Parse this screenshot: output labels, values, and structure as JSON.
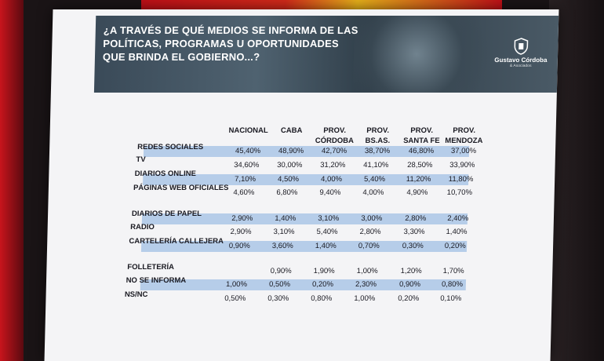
{
  "slide": {
    "title": "¿A TRAVÉS DE QUÉ MEDIOS SE INFORMA DE LAS POLÍTICAS, PROGRAMAS U OPORTUNIDADES QUE BRINDA EL GOBIERNO...?",
    "logo_name": "Gustavo Córdoba",
    "logo_sub": "& Asociados"
  },
  "table": {
    "columns": [
      "NACIONAL",
      "CABA",
      "PROV. CÓRDOBA",
      "PROV. BS.AS.",
      "PROV. SANTA FE",
      "PROV. MENDOZA"
    ],
    "rows": [
      {
        "label": "REDES SOCIALES",
        "values": [
          "45,40%",
          "48,90%",
          "42,70%",
          "38,70%",
          "46,80%",
          "37,00%"
        ]
      },
      {
        "label": "TV",
        "values": [
          "34,60%",
          "30,00%",
          "31,20%",
          "41,10%",
          "28,50%",
          "33,90%"
        ]
      },
      {
        "label": "DIARIOS ONLINE",
        "values": [
          "7,10%",
          "4,50%",
          "4,00%",
          "5,40%",
          "11,20%",
          "11,80%"
        ]
      },
      {
        "label": "PÁGINAS WEB OFICIALES",
        "values": [
          "4,60%",
          "6,80%",
          "9,40%",
          "4,00%",
          "4,90%",
          "10,70%"
        ]
      },
      {
        "label": "DIARIOS DE PAPEL",
        "values": [
          "2,90%",
          "1,40%",
          "3,10%",
          "3,00%",
          "2,80%",
          "2,40%"
        ]
      },
      {
        "label": "RADIO",
        "values": [
          "2,90%",
          "3,10%",
          "5,40%",
          "2,80%",
          "3,30%",
          "1,40%"
        ]
      },
      {
        "label": "CARTELERÍA CALLEJERA",
        "values": [
          "0,90%",
          "3,60%",
          "1,40%",
          "0,70%",
          "0,30%",
          "0,20%"
        ]
      },
      {
        "label": "FOLLETERÍA",
        "values": [
          "",
          "0,90%",
          "1,90%",
          "1,00%",
          "1,20%",
          "1,70%"
        ]
      },
      {
        "label": "NO SE INFORMA",
        "values": [
          "1,00%",
          "0,50%",
          "0,20%",
          "2,30%",
          "0,90%",
          "0,80%"
        ]
      },
      {
        "label": "NS/NC",
        "values": [
          "0,50%",
          "0,30%",
          "0,80%",
          "1,00%",
          "0,20%",
          "0,10%"
        ]
      }
    ]
  },
  "colors": {
    "band": "#b6cde9",
    "banner": "#3a4a58",
    "slide_bg": "#f4f4f6"
  }
}
